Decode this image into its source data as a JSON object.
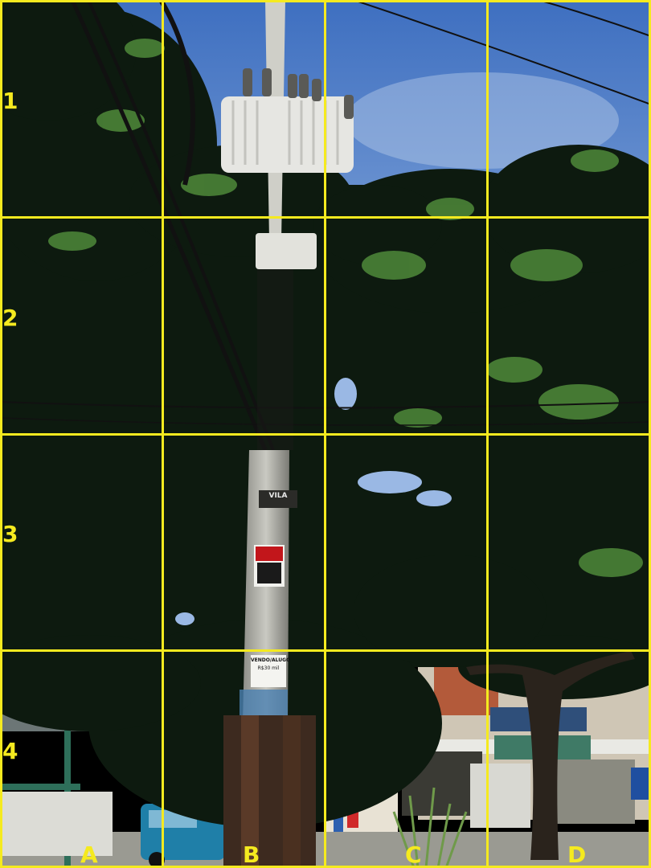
{
  "grid": {
    "rows": [
      "1",
      "2",
      "3",
      "4"
    ],
    "cols": [
      "A",
      "B",
      "C",
      "D"
    ],
    "line_color": "#f5ea1f"
  },
  "signs": {
    "pole_tag": "VILA",
    "poster_top": "VENDO/ALUGO",
    "poster_price": "R$30 mil"
  },
  "colors": {
    "sky": "#4f7fc9",
    "foliage_dark": "#0e1a10",
    "pole": "#b8b8b0",
    "transformer": "#e4e4e0",
    "car": "#1f7fa8"
  }
}
